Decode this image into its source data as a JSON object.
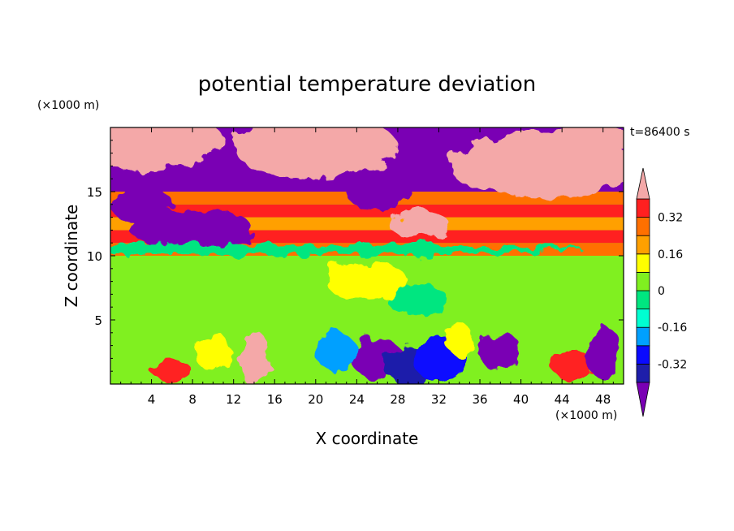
{
  "title": "potential temperature deviation",
  "time_label": "t=86400 s",
  "x_axis": {
    "label": "X coordinate",
    "unit": "(×1000 m)",
    "ticks": [
      "4",
      "8",
      "12",
      "16",
      "20",
      "24",
      "28",
      "32",
      "36",
      "40",
      "44",
      "48"
    ]
  },
  "y_axis": {
    "label": "Z coordinate",
    "unit": "(×1000 m)",
    "ticks": [
      "5",
      "10",
      "15"
    ]
  },
  "chart_data": {
    "type": "heatmap",
    "title": "potential temperature deviation",
    "xlabel": "X coordinate",
    "ylabel": "Z coordinate",
    "x_unit": "×1000 m",
    "y_unit": "×1000 m",
    "xlim": [
      0,
      50
    ],
    "ylim": [
      0,
      20
    ],
    "x_ticks": [
      4,
      8,
      12,
      16,
      20,
      24,
      28,
      32,
      36,
      40,
      44,
      48
    ],
    "y_ticks": [
      5,
      10,
      15
    ],
    "time": "t=86400 s",
    "colorbar": {
      "labels": [
        "0.32",
        "0.16",
        "0",
        "-0.16",
        "-0.32"
      ],
      "label_values": [
        0.32,
        0.16,
        0,
        -0.16,
        -0.32
      ],
      "levels": [
        -0.4,
        -0.32,
        -0.24,
        -0.16,
        -0.08,
        0,
        0.08,
        0.16,
        0.24,
        0.32,
        0.4
      ],
      "colors": [
        "#7a00b4",
        "#1e1eaa",
        "#0a0aff",
        "#00a0ff",
        "#00ffd2",
        "#00e680",
        "#80f020",
        "#ffff00",
        "#ffa000",
        "#ff7000",
        "#ff2020",
        "#f4a8a8"
      ],
      "extend": "both"
    }
  }
}
